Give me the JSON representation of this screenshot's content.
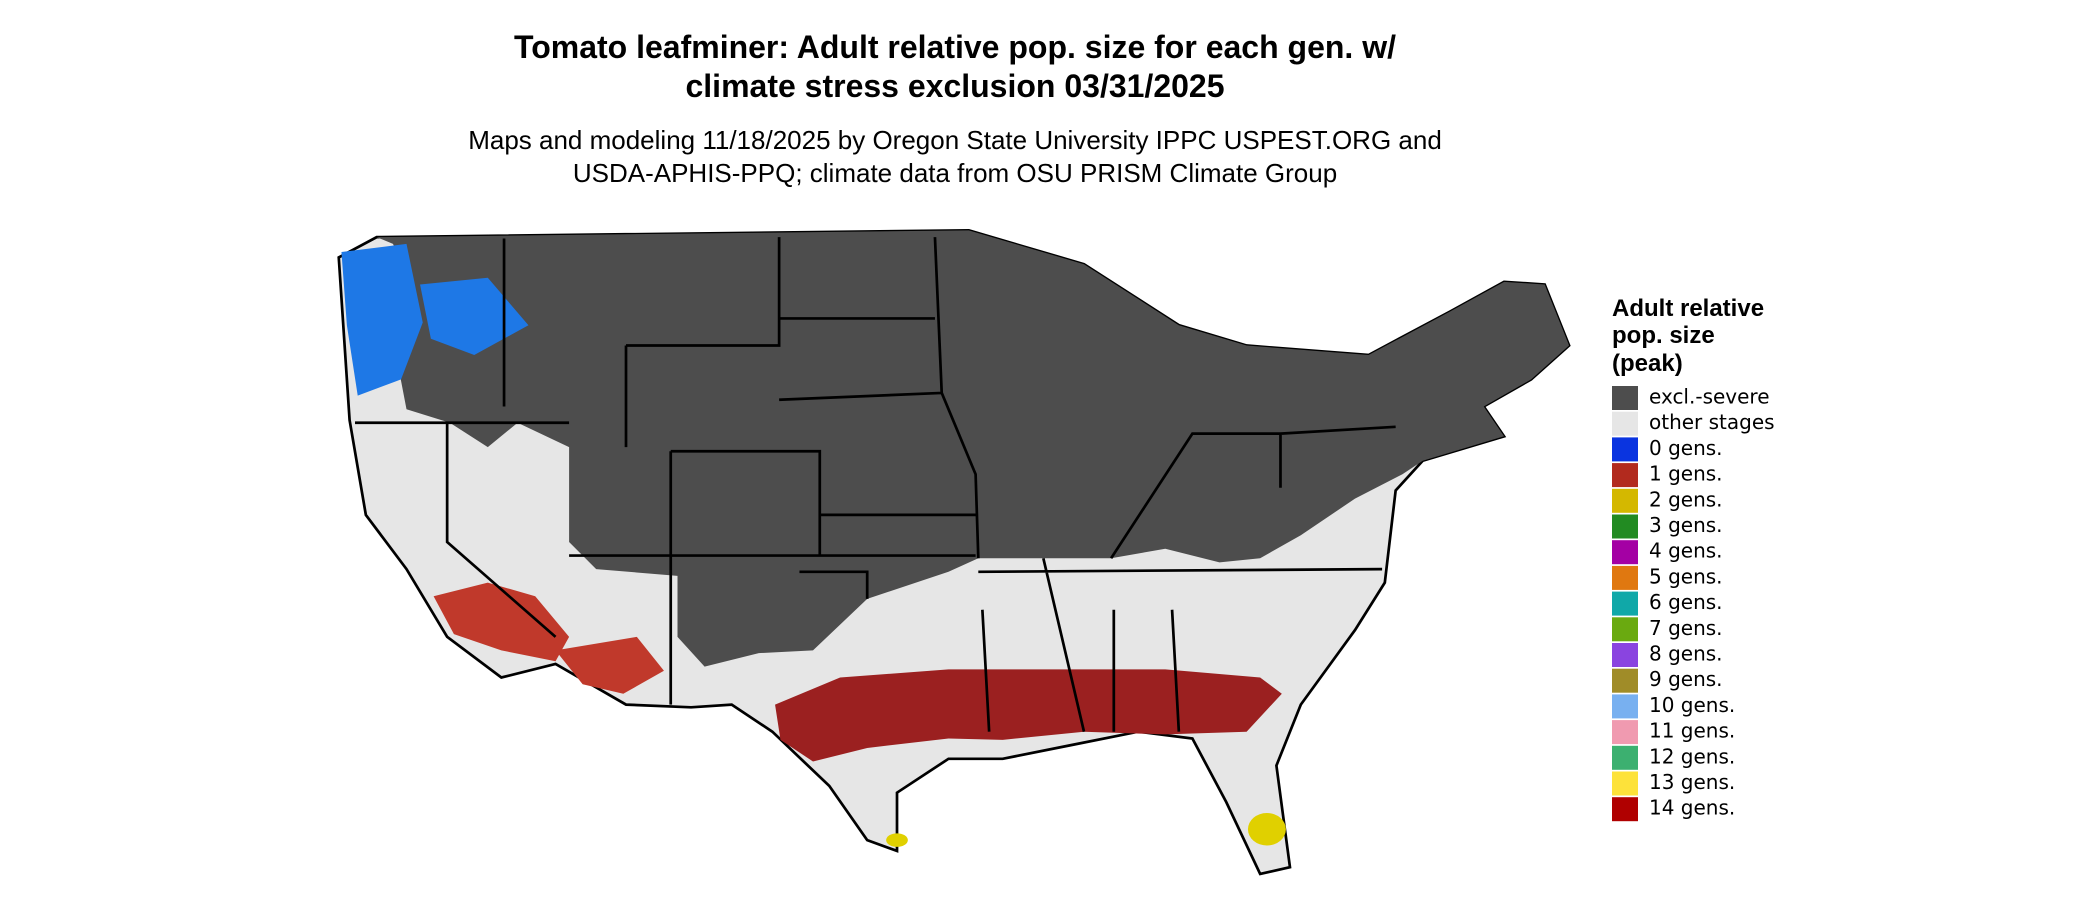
{
  "header": {
    "title_lines": [
      "Tomato leafminer: Adult relative pop. size for each gen. w/",
      "climate stress exclusion 03/31/2025"
    ],
    "subtitle_lines": [
      "Maps and modeling 11/18/2025 by Oregon State University IPPC USPEST.ORG and",
      "USDA-APHIS-PPQ; climate data from OSU PRISM Climate Group"
    ]
  },
  "legend": {
    "title_lines": [
      "Adult relative",
      "pop. size",
      "(peak)"
    ],
    "items": [
      {
        "label": "excl.-severe",
        "color": "#4d4d4d"
      },
      {
        "label": "other stages",
        "color": "#e6e6e6"
      },
      {
        "label": "0 gens.",
        "color": "#0a34e0"
      },
      {
        "label": "1 gens.",
        "color": "#b22a1e"
      },
      {
        "label": "2 gens.",
        "color": "#d4b800"
      },
      {
        "label": "3 gens.",
        "color": "#228b22"
      },
      {
        "label": "4 gens.",
        "color": "#a400a4"
      },
      {
        "label": "5 gens.",
        "color": "#e07810"
      },
      {
        "label": "6 gens.",
        "color": "#10a8a8"
      },
      {
        "label": "7 gens.",
        "color": "#6aaa10"
      },
      {
        "label": "8 gens.",
        "color": "#8a44e0"
      },
      {
        "label": "9 gens.",
        "color": "#a08c28"
      },
      {
        "label": "10 gens.",
        "color": "#78b0f0"
      },
      {
        "label": "11 gens.",
        "color": "#f09ab0"
      },
      {
        "label": "12 gens.",
        "color": "#3cb070"
      },
      {
        "label": "13 gens.",
        "color": "#fde23a"
      },
      {
        "label": "14 gens.",
        "color": "#b00000"
      }
    ]
  }
}
